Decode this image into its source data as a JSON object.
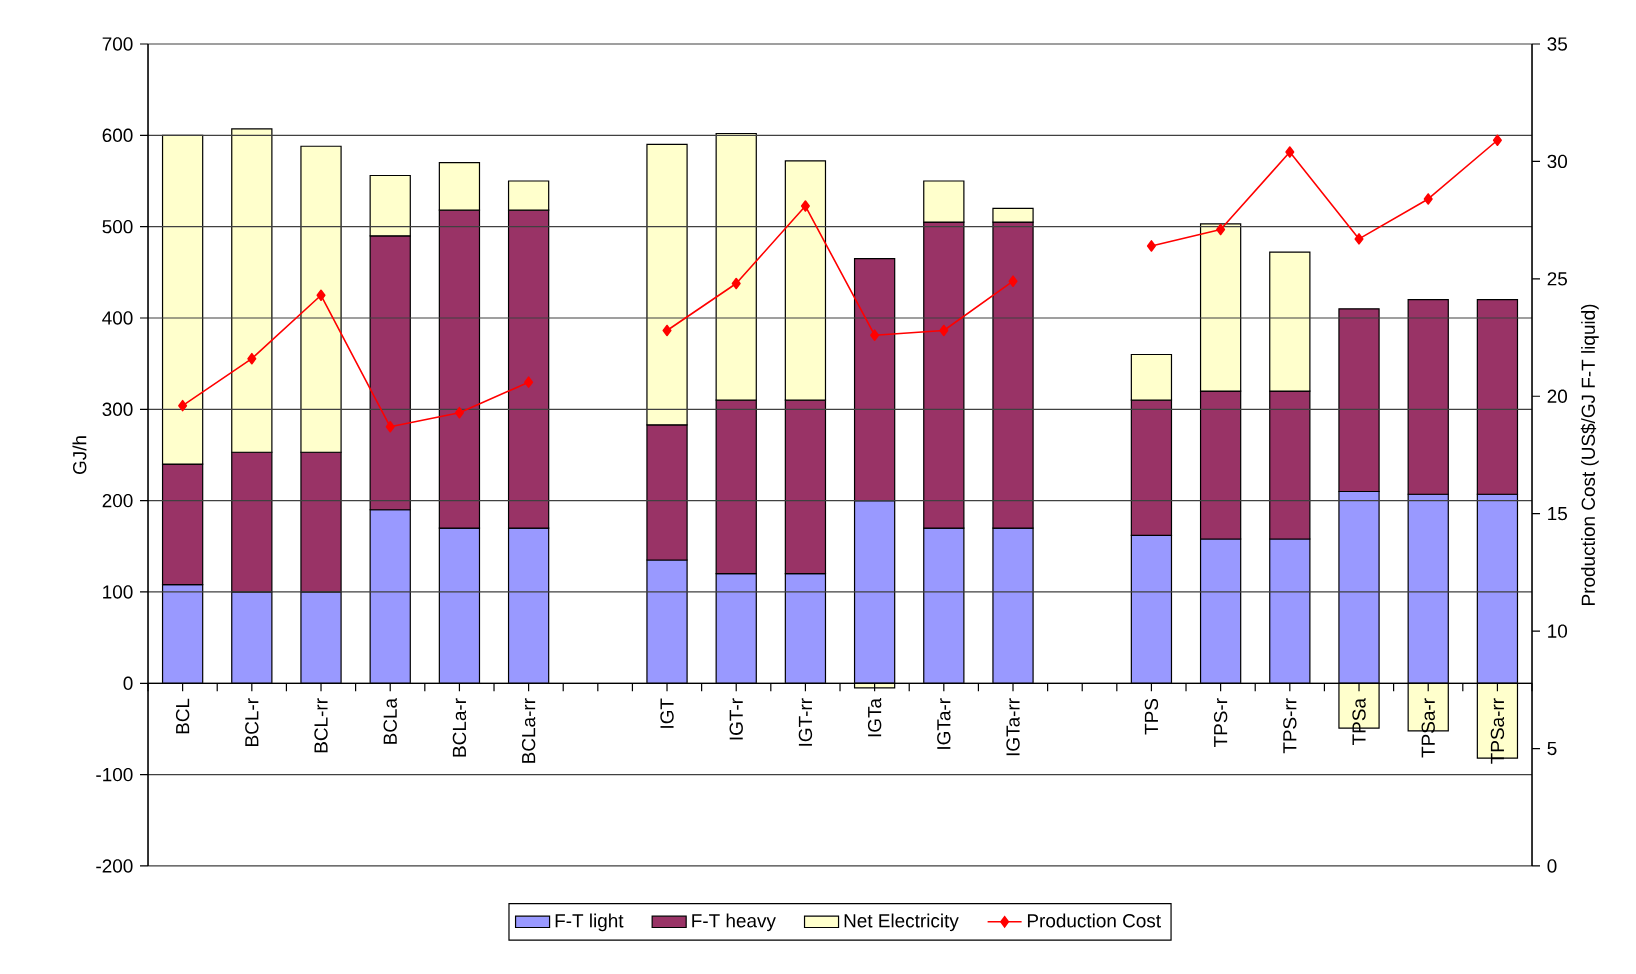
{
  "chart_data": {
    "type": "bar",
    "stacked": true,
    "categories": [
      "BCL",
      "BCL-r",
      "BCL-rr",
      "BCLa",
      "BCLa-r",
      "BCLa-rr",
      null,
      "IGT",
      "IGT-r",
      "IGT-rr",
      "IGTa",
      "IGTa-r",
      "IGTa-rr",
      null,
      "TPS",
      "TPS-r",
      "TPS-rr",
      "TPSa",
      "TPSa-r",
      "TPSa-rr"
    ],
    "series": [
      {
        "name": "F-T light",
        "color": "#9999ff",
        "values": [
          108,
          100,
          100,
          190,
          170,
          170,
          null,
          135,
          120,
          120,
          200,
          170,
          170,
          null,
          162,
          158,
          158,
          210,
          207,
          207
        ]
      },
      {
        "name": "F-T heavy",
        "color": "#993366",
        "values": [
          132,
          153,
          153,
          300,
          348,
          348,
          null,
          148,
          190,
          190,
          265,
          335,
          335,
          null,
          148,
          162,
          162,
          200,
          213,
          213
        ]
      },
      {
        "name": "Net Electricity",
        "color": "#ffffcc",
        "values": [
          360,
          354,
          335,
          66,
          52,
          32,
          null,
          307,
          292,
          262,
          -5,
          45,
          15,
          null,
          50,
          183,
          152,
          -49,
          -52,
          -82
        ]
      },
      {
        "name": "Production Cost",
        "color": "#ff0000",
        "type": "line",
        "axis": "y2",
        "marker": "diamond",
        "line_style": "solid",
        "values": [
          19.6,
          21.6,
          24.3,
          18.7,
          19.3,
          20.6,
          null,
          22.8,
          24.8,
          28.1,
          22.6,
          22.8,
          24.9,
          null,
          26.4,
          27.1,
          30.4,
          26.7,
          28.4,
          30.9
        ]
      }
    ],
    "ylabel": "GJ/h",
    "y2label": "Production Cost (US$/GJ F-T liquid)",
    "ylim": [
      -200,
      700
    ],
    "yticks": [
      -200,
      -100,
      0,
      100,
      200,
      300,
      400,
      500,
      600,
      700
    ],
    "y2lim": [
      0,
      35
    ],
    "y2ticks": [
      0,
      5,
      10,
      15,
      20,
      25,
      30,
      35
    ],
    "grid": "y",
    "legend": "bottom"
  }
}
